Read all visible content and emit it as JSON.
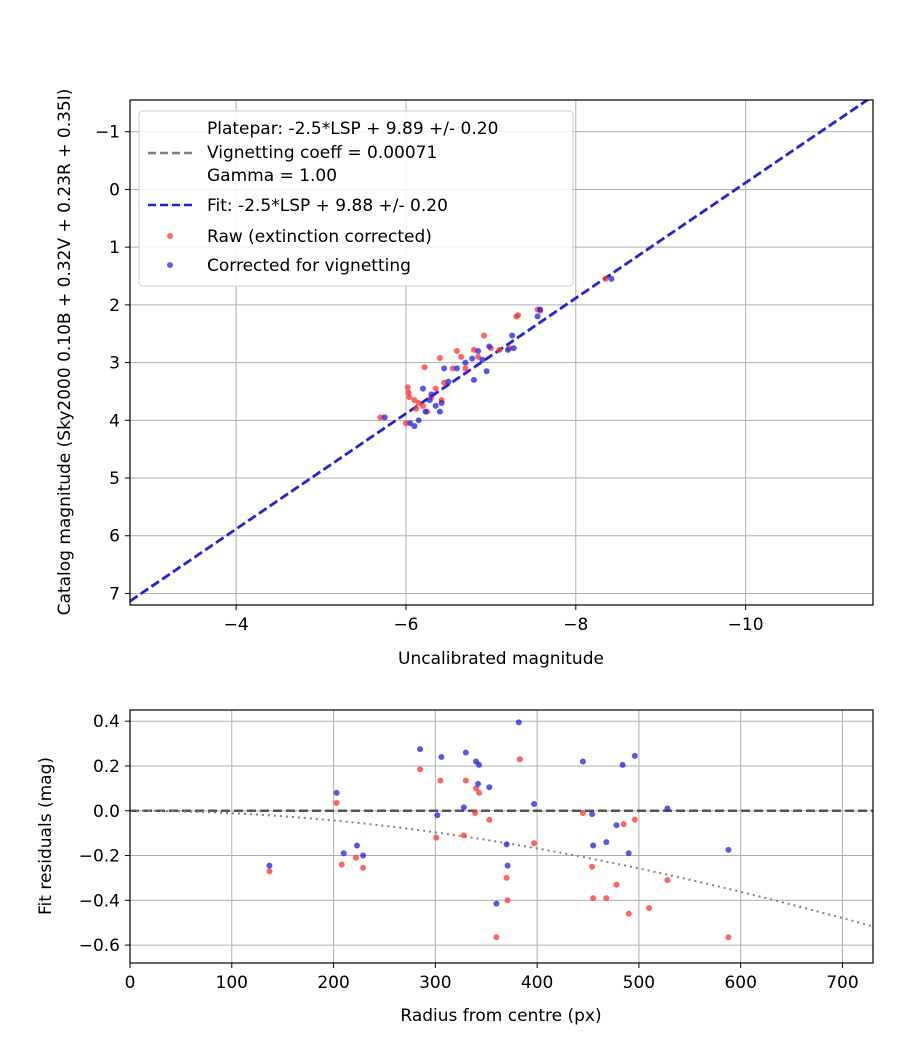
{
  "chart_data": [
    {
      "type": "scatter",
      "xlabel": "Uncalibrated magnitude",
      "ylabel": "Catalog magnitude (Sky2000 0.10B + 0.32V + 0.23R + 0.35I)",
      "xlim": [
        -2.75,
        -11.5
      ],
      "ylim": [
        7.2,
        -1.55
      ],
      "x_ticks": [
        -4,
        -6,
        -8,
        -10
      ],
      "x_tick_labels": [
        "−4",
        "−6",
        "−8",
        "−10"
      ],
      "y_ticks": [
        -1,
        0,
        1,
        2,
        3,
        4,
        5,
        6,
        7
      ],
      "y_tick_labels": [
        "−1",
        "0",
        "1",
        "2",
        "3",
        "4",
        "5",
        "6",
        "7"
      ],
      "grid": true,
      "legend": {
        "position": "top-left",
        "platepar_line": "Platepar: -2.5*LSP + 9.89 +/- 0.20",
        "vignetting_line": "Vignetting coeff = 0.00071",
        "gamma_line": "Gamma = 1.00",
        "fit_label": "Fit: -2.5*LSP + 9.88 +/- 0.20",
        "raw_label": "Raw (extinction corrected)",
        "corrected_label": "Corrected for vignetting"
      },
      "lines": [
        {
          "name": "Platepar",
          "slope": 1,
          "intercept": 9.89,
          "color": "#808080",
          "style": "dashed"
        },
        {
          "name": "Fit",
          "slope": 1,
          "intercept": 9.88,
          "color": "#2020e0",
          "style": "dashed"
        }
      ],
      "series": [
        {
          "name": "Raw (extinction corrected)",
          "color": "#ff3030",
          "points": [
            [
              -5.7,
              3.95
            ],
            [
              -6.0,
              4.05
            ],
            [
              -6.02,
              3.43
            ],
            [
              -6.03,
              3.52
            ],
            [
              -6.04,
              3.6
            ],
            [
              -6.1,
              3.65
            ],
            [
              -6.12,
              3.8
            ],
            [
              -6.15,
              3.7
            ],
            [
              -6.2,
              3.75
            ],
            [
              -6.22,
              3.08
            ],
            [
              -6.25,
              3.85
            ],
            [
              -6.3,
              3.6
            ],
            [
              -6.35,
              3.45
            ],
            [
              -6.4,
              2.92
            ],
            [
              -6.42,
              3.65
            ],
            [
              -6.45,
              3.35
            ],
            [
              -6.55,
              3.1
            ],
            [
              -6.6,
              2.8
            ],
            [
              -6.65,
              2.9
            ],
            [
              -6.7,
              3.1
            ],
            [
              -6.8,
              2.78
            ],
            [
              -6.85,
              2.9
            ],
            [
              -6.92,
              2.53
            ],
            [
              -7.0,
              2.75
            ],
            [
              -7.1,
              2.78
            ],
            [
              -7.22,
              2.75
            ],
            [
              -7.3,
              2.2
            ],
            [
              -7.32,
              2.18
            ],
            [
              -7.55,
              2.08
            ],
            [
              -7.58,
              2.1
            ],
            [
              -8.35,
              1.55
            ]
          ]
        },
        {
          "name": "Corrected for vignetting",
          "color": "#2020e0",
          "points": [
            [
              -5.75,
              3.95
            ],
            [
              -6.05,
              4.05
            ],
            [
              -6.1,
              4.1
            ],
            [
              -6.15,
              4.0
            ],
            [
              -6.2,
              3.45
            ],
            [
              -6.23,
              3.85
            ],
            [
              -6.28,
              3.65
            ],
            [
              -6.3,
              3.55
            ],
            [
              -6.35,
              3.75
            ],
            [
              -6.4,
              3.85
            ],
            [
              -6.42,
              3.7
            ],
            [
              -6.45,
              3.1
            ],
            [
              -6.5,
              3.33
            ],
            [
              -6.6,
              3.1
            ],
            [
              -6.7,
              3.0
            ],
            [
              -6.78,
              2.93
            ],
            [
              -6.8,
              3.3
            ],
            [
              -6.85,
              2.8
            ],
            [
              -6.9,
              2.95
            ],
            [
              -6.95,
              3.15
            ],
            [
              -6.98,
              2.72
            ],
            [
              -7.2,
              2.78
            ],
            [
              -7.25,
              2.53
            ],
            [
              -7.27,
              2.75
            ],
            [
              -7.55,
              2.2
            ],
            [
              -7.58,
              2.08
            ],
            [
              -8.42,
              1.55
            ]
          ]
        }
      ]
    },
    {
      "type": "scatter",
      "xlabel": "Radius from centre (px)",
      "ylabel": "Fit residuals (mag)",
      "xlim": [
        0,
        730
      ],
      "ylim": [
        -0.68,
        0.45
      ],
      "x_ticks": [
        0,
        100,
        200,
        300,
        400,
        500,
        600,
        700
      ],
      "x_tick_labels": [
        "0",
        "100",
        "200",
        "300",
        "400",
        "500",
        "600",
        "700"
      ],
      "y_ticks": [
        0.4,
        0.2,
        0.0,
        -0.2,
        -0.4,
        -0.6
      ],
      "y_tick_labels": [
        "0.4",
        "0.2",
        "0.0",
        "−0.2",
        "−0.4",
        "−0.6"
      ],
      "grid": true,
      "reference_line": {
        "y": 0.0,
        "color": "#555555",
        "style": "dashed"
      },
      "vignetting_curve": {
        "coeff": 0.00071,
        "color": "#808080",
        "style": "dotted"
      },
      "series": [
        {
          "name": "Raw (extinction corrected)",
          "color": "#ff3030",
          "points": [
            [
              137,
              -0.27
            ],
            [
              203,
              0.035
            ],
            [
              208,
              -0.24
            ],
            [
              222,
              -0.21
            ],
            [
              229,
              -0.255
            ],
            [
              285,
              0.185
            ],
            [
              301,
              -0.12
            ],
            [
              305,
              0.135
            ],
            [
              328,
              -0.11
            ],
            [
              330,
              0.135
            ],
            [
              339,
              -0.01
            ],
            [
              340,
              0.1
            ],
            [
              343,
              0.08
            ],
            [
              353,
              -0.04
            ],
            [
              360,
              -0.565
            ],
            [
              370,
              -0.3
            ],
            [
              371,
              -0.4
            ],
            [
              383,
              0.23
            ],
            [
              397,
              -0.145
            ],
            [
              445,
              -0.01
            ],
            [
              454,
              -0.25
            ],
            [
              455,
              -0.39
            ],
            [
              468,
              -0.39
            ],
            [
              478,
              -0.33
            ],
            [
              485,
              -0.06
            ],
            [
              490,
              -0.46
            ],
            [
              496,
              -0.04
            ],
            [
              510,
              -0.435
            ],
            [
              528,
              -0.31
            ],
            [
              588,
              -0.565
            ]
          ]
        },
        {
          "name": "Corrected for vignetting",
          "color": "#2020e0",
          "points": [
            [
              137,
              -0.245
            ],
            [
              203,
              0.08
            ],
            [
              210,
              -0.19
            ],
            [
              223,
              -0.155
            ],
            [
              229,
              -0.2
            ],
            [
              285,
              0.275
            ],
            [
              302,
              -0.02
            ],
            [
              306,
              0.24
            ],
            [
              328,
              0.015
            ],
            [
              330,
              0.26
            ],
            [
              340,
              0.22
            ],
            [
              342,
              0.12
            ],
            [
              343,
              0.205
            ],
            [
              353,
              0.105
            ],
            [
              360,
              -0.415
            ],
            [
              370,
              -0.15
            ],
            [
              371,
              -0.245
            ],
            [
              382,
              0.395
            ],
            [
              397,
              0.03
            ],
            [
              445,
              0.22
            ],
            [
              454,
              -0.015
            ],
            [
              455,
              -0.155
            ],
            [
              468,
              -0.14
            ],
            [
              478,
              -0.065
            ],
            [
              484,
              0.205
            ],
            [
              490,
              -0.19
            ],
            [
              496,
              0.245
            ],
            [
              528,
              0.01
            ],
            [
              588,
              -0.175
            ]
          ]
        }
      ]
    }
  ]
}
